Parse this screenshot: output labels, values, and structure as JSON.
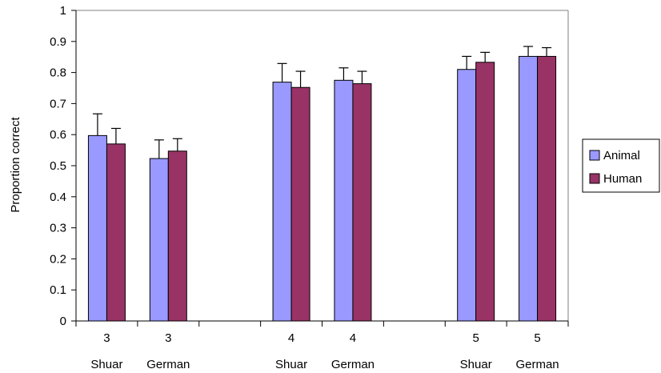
{
  "chart_data": {
    "type": "bar",
    "title": "",
    "xlabel": "",
    "ylabel": "Proportion correct",
    "ylim": [
      0,
      1
    ],
    "yticks": [
      0,
      0.1,
      0.2,
      0.3,
      0.4,
      0.5,
      0.6,
      0.7,
      0.8,
      0.9,
      1
    ],
    "ytick_labels": [
      "0",
      "0.1",
      "0.2",
      "0.3",
      "0.4",
      "0.5",
      "0.6",
      "0.7",
      "0.8",
      "0.9",
      "1"
    ],
    "grid": false,
    "legend_position": "right",
    "categories": [
      {
        "top": "3",
        "bottom": "Shuar"
      },
      {
        "top": "3",
        "bottom": "German"
      },
      {
        "top": "",
        "bottom": ""
      },
      {
        "top": "4",
        "bottom": "Shuar"
      },
      {
        "top": "4",
        "bottom": "German"
      },
      {
        "top": "",
        "bottom": ""
      },
      {
        "top": "5",
        "bottom": "Shuar"
      },
      {
        "top": "5",
        "bottom": "German"
      }
    ],
    "series": [
      {
        "name": "Animal",
        "color": "#9999ff",
        "values": [
          0.597,
          0.523,
          null,
          0.769,
          0.775,
          null,
          0.81,
          0.852
        ],
        "error": [
          0.07,
          0.06,
          null,
          0.06,
          0.04,
          null,
          0.042,
          0.032
        ]
      },
      {
        "name": "Human",
        "color": "#993366",
        "values": [
          0.57,
          0.547,
          null,
          0.752,
          0.764,
          null,
          0.833,
          0.852
        ],
        "error": [
          0.05,
          0.04,
          null,
          0.052,
          0.04,
          null,
          0.032,
          0.028
        ]
      }
    ]
  }
}
